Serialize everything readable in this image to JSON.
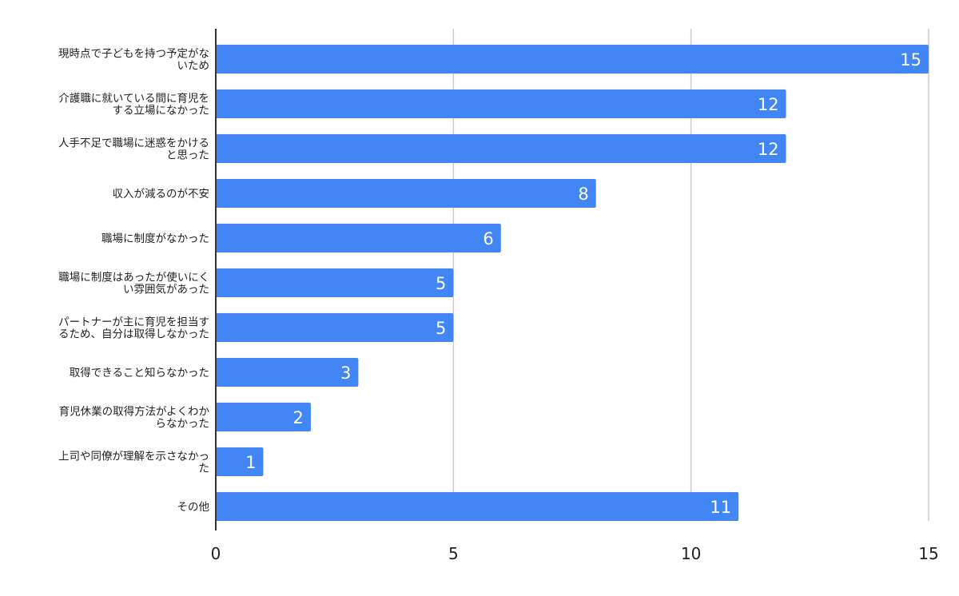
{
  "chart_data": {
    "type": "bar",
    "orientation": "horizontal",
    "title": "",
    "xlabel": "",
    "ylabel": "",
    "xlim": [
      0,
      15
    ],
    "x_ticks": [
      0,
      5,
      10,
      15
    ],
    "grid": true,
    "bar_color": "#4285f4",
    "grid_color": "#cccccc",
    "axis_color": "#333333",
    "label_color": "#222222",
    "value_label_color": "#ffffff",
    "categories": [
      [
        "現時点で子どもを持つ予定がな",
        "いため"
      ],
      [
        "介護職に就いている間に育児を",
        "する立場になかった"
      ],
      [
        "人手不足で職場に迷惑をかける",
        "と思った"
      ],
      [
        "収入が減るのが不安"
      ],
      [
        "職場に制度がなかった"
      ],
      [
        "職場に制度はあったが使いにく",
        "い雰囲気があった"
      ],
      [
        "パートナーが主に育児を担当す",
        "るため、自分は取得しなかった"
      ],
      [
        "取得できること知らなかった"
      ],
      [
        "育児休業の取得方法がよくわか",
        "らなかった"
      ],
      [
        "上司や同僚が理解を示さなかっ",
        "た"
      ],
      [
        "その他"
      ]
    ],
    "values": [
      15,
      12,
      12,
      8,
      6,
      5,
      5,
      3,
      2,
      1,
      11
    ]
  }
}
